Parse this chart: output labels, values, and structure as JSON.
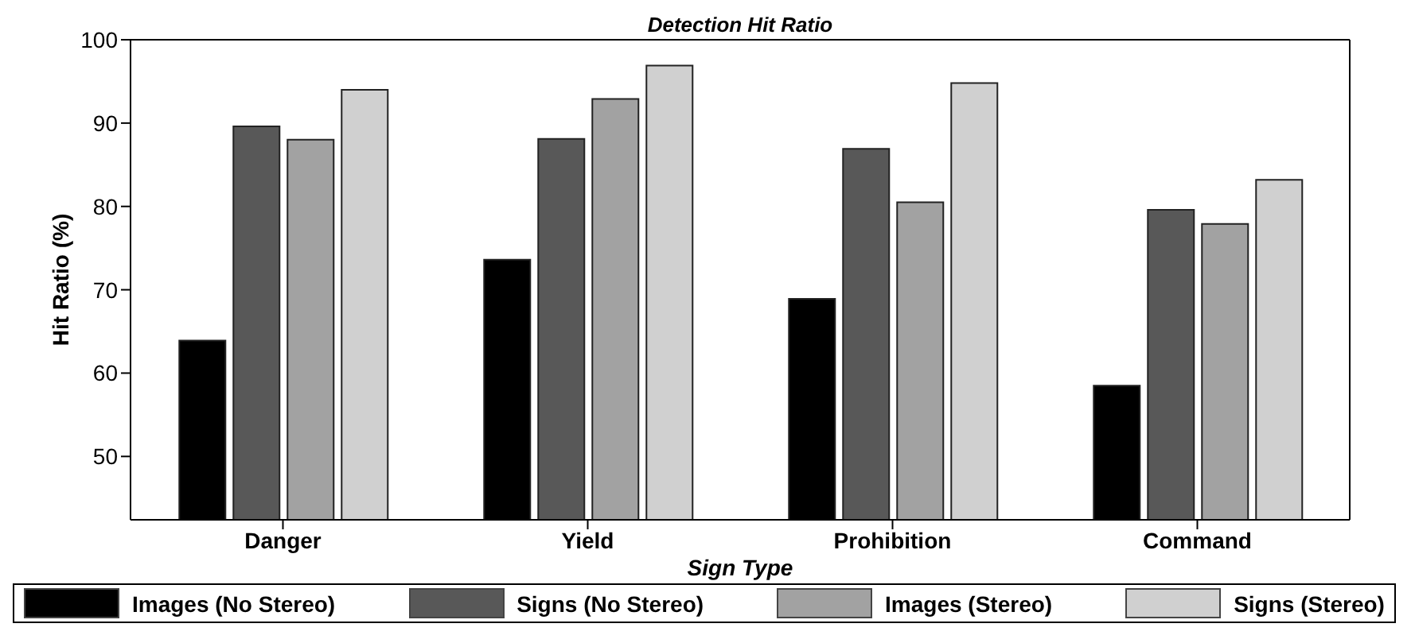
{
  "chart_data": {
    "type": "bar",
    "title": "Detection Hit Ratio",
    "xlabel": "Sign Type",
    "ylabel": "Hit Ratio (%)",
    "categories": [
      "Danger",
      "Yield",
      "Prohibition",
      "Command"
    ],
    "series": [
      {
        "name": "Images (No Stereo)",
        "color": "#000000",
        "values": [
          63.9,
          73.6,
          68.9,
          58.5
        ]
      },
      {
        "name": "Signs (No Stereo)",
        "color": "#585858",
        "values": [
          89.6,
          88.1,
          86.9,
          79.6
        ]
      },
      {
        "name": "Images (Stereo)",
        "color": "#a2a2a2",
        "values": [
          88.0,
          92.9,
          80.5,
          77.9
        ]
      },
      {
        "name": "Signs (Stereo)",
        "color": "#d0d0d0",
        "values": [
          94.0,
          96.9,
          94.8,
          83.2
        ]
      }
    ],
    "ylim": [
      42.4,
      100
    ],
    "yticks": [
      50,
      60,
      70,
      80,
      90,
      100
    ],
    "grid": false,
    "legend": "bottom"
  }
}
